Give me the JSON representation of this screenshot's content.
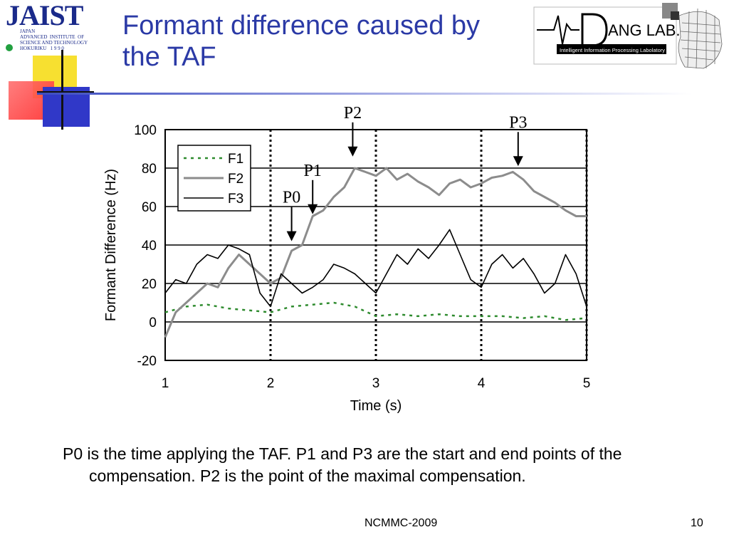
{
  "slide": {
    "title": "Formant difference caused by the TAF",
    "caption": "P0 is the time applying the TAF.  P1 and P3 are the start and end points of the compensation.  P2 is the point of the maximal compensation.",
    "footer_center": "NCMMC-2009",
    "page_number": "10"
  },
  "logos": {
    "jaist_word": "JAIST",
    "jaist_sub": "JAPAN\nADVANCED  INSTITUTE  OF\nSCIENCE AND TECHNOLOGY\nHOKURIKU   1 9 9 0",
    "dang_word": "ANG LAB.",
    "dang_sub": "Intelligent Information Processing Labolatory"
  },
  "colors": {
    "title": "#2b3aa6",
    "f1": "#2e8b2e",
    "f2": "#8c8c8c",
    "f3": "#000000"
  },
  "chart_data": {
    "type": "line",
    "xlabel": "Time (s)",
    "ylabel": "Formant Difference (Hz)",
    "xlim": [
      1,
      5
    ],
    "ylim": [
      -20,
      100
    ],
    "xticks": [
      "1",
      "2",
      "3",
      "4",
      "5"
    ],
    "yticks": [
      "100",
      "80",
      "60",
      "40",
      "20",
      "0",
      "-20"
    ],
    "grid_y": true,
    "vlines_dotted": [
      2,
      3,
      4,
      5
    ],
    "legend_position": "top-left",
    "series": [
      {
        "name": "F1",
        "style": "dashed",
        "x": [
          1.0,
          1.2,
          1.4,
          1.6,
          1.8,
          2.0,
          2.2,
          2.4,
          2.6,
          2.8,
          3.0,
          3.2,
          3.4,
          3.6,
          3.8,
          4.0,
          4.2,
          4.4,
          4.6,
          4.8,
          5.0
        ],
        "y": [
          5,
          8,
          9,
          7,
          6,
          5,
          8,
          9,
          10,
          8,
          3,
          4,
          3,
          4,
          3,
          3,
          3,
          2,
          3,
          1,
          2
        ]
      },
      {
        "name": "F2",
        "style": "solid-thick",
        "x": [
          1.0,
          1.1,
          1.2,
          1.3,
          1.4,
          1.5,
          1.6,
          1.7,
          1.8,
          1.9,
          2.0,
          2.1,
          2.2,
          2.3,
          2.4,
          2.5,
          2.6,
          2.7,
          2.8,
          2.9,
          3.0,
          3.1,
          3.2,
          3.3,
          3.4,
          3.5,
          3.6,
          3.7,
          3.8,
          3.9,
          4.0,
          4.1,
          4.2,
          4.3,
          4.4,
          4.5,
          4.6,
          4.7,
          4.8,
          4.9,
          5.0
        ],
        "y": [
          -8,
          5,
          10,
          15,
          20,
          18,
          28,
          35,
          30,
          25,
          20,
          23,
          37,
          40,
          55,
          58,
          65,
          70,
          80,
          78,
          76,
          80,
          74,
          77,
          73,
          70,
          66,
          72,
          74,
          70,
          72,
          75,
          76,
          78,
          74,
          68,
          65,
          62,
          58,
          55,
          55
        ]
      },
      {
        "name": "F3",
        "style": "solid-thin",
        "x": [
          1.0,
          1.1,
          1.2,
          1.3,
          1.4,
          1.5,
          1.6,
          1.7,
          1.8,
          1.9,
          2.0,
          2.1,
          2.2,
          2.3,
          2.4,
          2.5,
          2.6,
          2.7,
          2.8,
          2.9,
          3.0,
          3.1,
          3.2,
          3.3,
          3.4,
          3.5,
          3.6,
          3.7,
          3.8,
          3.9,
          4.0,
          4.1,
          4.2,
          4.3,
          4.4,
          4.5,
          4.6,
          4.7,
          4.8,
          4.9,
          5.0
        ],
        "y": [
          15,
          22,
          20,
          30,
          35,
          33,
          40,
          38,
          35,
          15,
          8,
          25,
          20,
          15,
          18,
          22,
          30,
          28,
          25,
          20,
          15,
          25,
          35,
          30,
          38,
          33,
          40,
          48,
          35,
          22,
          18,
          30,
          35,
          28,
          33,
          25,
          15,
          20,
          35,
          25,
          8
        ]
      }
    ],
    "annotations": [
      {
        "label": "P0",
        "x": 2.2,
        "y": 42
      },
      {
        "label": "P1",
        "x": 2.4,
        "y": 56
      },
      {
        "label": "P2",
        "x": 2.78,
        "y": 86
      },
      {
        "label": "P3",
        "x": 4.35,
        "y": 81
      }
    ]
  }
}
